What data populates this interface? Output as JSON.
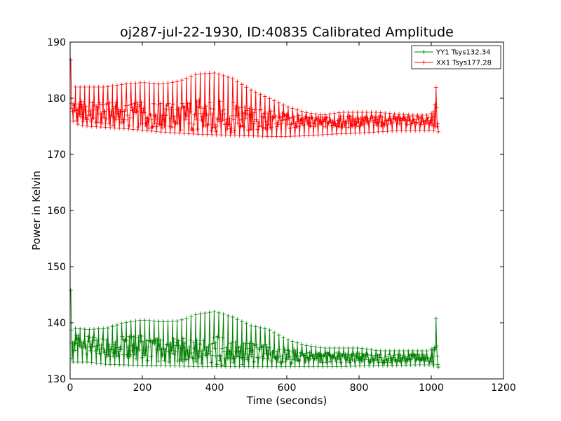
{
  "chart_data": {
    "type": "line",
    "title": "oj287-jul-22-1930, ID:40835 Calibrated Amplitude",
    "xlabel": "Time (seconds)",
    "ylabel": "Power in Kelvin",
    "xlim": [
      0,
      1200
    ],
    "ylim": [
      130,
      190
    ],
    "xticks": [
      0,
      200,
      400,
      600,
      800,
      1000,
      1200
    ],
    "yticks": [
      130,
      140,
      150,
      160,
      170,
      180,
      190
    ],
    "grid": false,
    "legend_position": "top-right",
    "marker": "+",
    "series": [
      {
        "name": "YY1 Tsys132.34",
        "color": "#008000",
        "x": [
          2,
          10,
          50,
          100,
          150,
          200,
          250,
          300,
          350,
          400,
          450,
          500,
          550,
          600,
          650,
          700,
          750,
          800,
          850,
          900,
          950,
          1000,
          1010,
          1020
        ],
        "min": [
          133.0,
          133.0,
          133.0,
          132.6,
          132.5,
          132.4,
          132.4,
          132.3,
          132.2,
          132.2,
          132.2,
          132.2,
          132.2,
          132.2,
          132.2,
          132.2,
          132.2,
          132.3,
          132.4,
          132.4,
          132.5,
          132.5,
          132.2,
          132.1
        ],
        "max": [
          145.8,
          139.0,
          138.8,
          139.0,
          140.0,
          140.5,
          140.2,
          140.3,
          141.5,
          142.0,
          141.0,
          139.5,
          138.8,
          137.0,
          136.0,
          135.5,
          135.5,
          135.5,
          135.0,
          135.0,
          135.0,
          135.0,
          142.3,
          137.5
        ],
        "mean": [
          136.0,
          136.2,
          136.0,
          135.8,
          135.8,
          135.5,
          135.2,
          135.0,
          135.0,
          135.0,
          134.8,
          134.5,
          134.3,
          134.0,
          134.0,
          133.8,
          133.8,
          133.7,
          133.6,
          133.6,
          133.7,
          133.7,
          134.0,
          133.5
        ]
      },
      {
        "name": "XX1 Tsys177.28",
        "color": "#ff0000",
        "x": [
          2,
          10,
          50,
          100,
          150,
          200,
          250,
          300,
          350,
          400,
          450,
          500,
          550,
          600,
          650,
          700,
          750,
          800,
          850,
          900,
          950,
          1000,
          1010,
          1020
        ],
        "min": [
          177.5,
          175.5,
          175.0,
          174.8,
          174.6,
          174.3,
          174.0,
          173.8,
          173.6,
          173.5,
          173.4,
          173.3,
          173.2,
          173.2,
          173.3,
          173.5,
          173.7,
          173.8,
          174.0,
          174.2,
          174.2,
          174.3,
          174.2,
          174.0
        ],
        "max": [
          186.8,
          182.0,
          182.0,
          182.0,
          182.5,
          182.8,
          182.5,
          183.0,
          184.3,
          184.5,
          183.5,
          181.5,
          180.0,
          178.5,
          177.5,
          177.0,
          177.5,
          177.5,
          177.5,
          177.2,
          177.0,
          177.0,
          183.8,
          178.0
        ],
        "mean": [
          178.0,
          177.8,
          177.5,
          177.2,
          177.2,
          177.0,
          176.8,
          176.8,
          176.8,
          176.7,
          176.5,
          176.2,
          176.0,
          175.8,
          175.7,
          175.7,
          175.8,
          175.8,
          175.9,
          176.0,
          176.0,
          176.0,
          177.0,
          176.0
        ]
      }
    ]
  }
}
